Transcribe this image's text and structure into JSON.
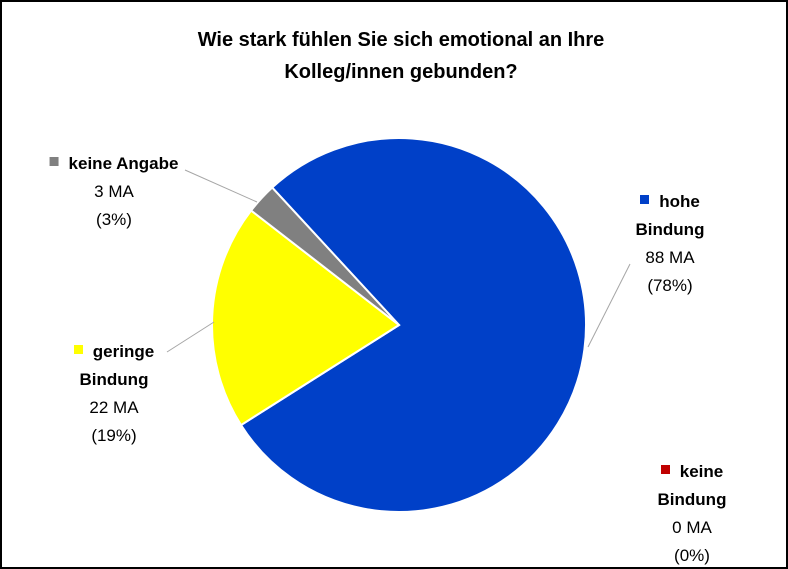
{
  "chart_data": {
    "type": "pie",
    "title": "Wie stark fühlen Sie sich emotional an Ihre Kolleg/innen gebunden?",
    "categories": [
      "hohe Bindung",
      "keine Bindung",
      "geringe Bindung",
      "keine Angabe"
    ],
    "values": [
      88,
      0,
      22,
      3
    ],
    "value_labels": [
      "88 MA",
      "0 MA",
      "22 MA",
      "3 MA"
    ],
    "percent_labels": [
      "(78%)",
      "(0%)",
      "(19%)",
      "(3%)"
    ],
    "colors": [
      "#0040c8",
      "#c00000",
      "#ffff00",
      "#808080"
    ]
  }
}
